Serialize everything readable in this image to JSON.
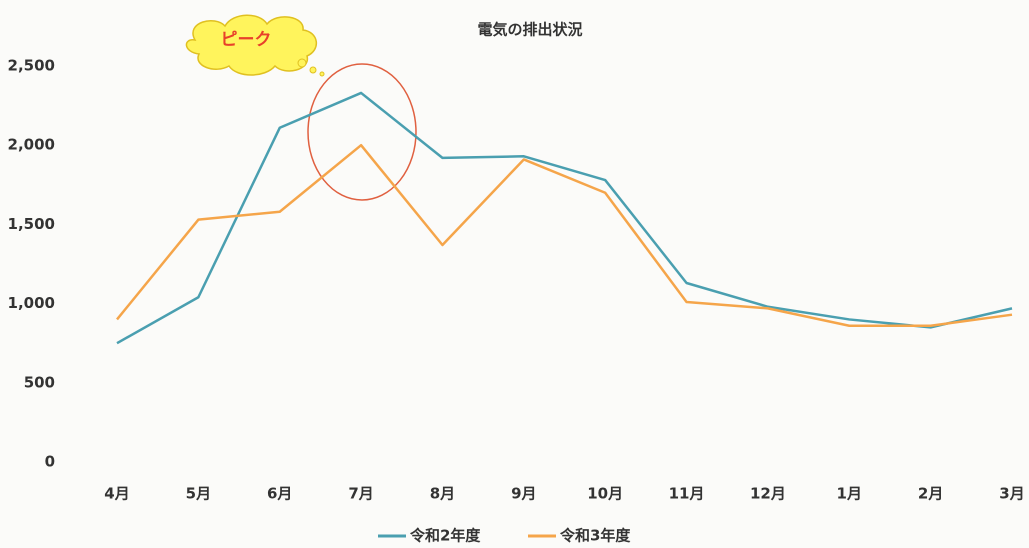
{
  "chart_data": {
    "type": "line",
    "title": "電気の排出状況",
    "annotation": "ピーク",
    "categories": [
      "4月",
      "5月",
      "6月",
      "7月",
      "8月",
      "9月",
      "10月",
      "11月",
      "12月",
      "1月",
      "2月",
      "3月"
    ],
    "series": [
      {
        "name": "令和2年度",
        "color": "#4a9fb0",
        "values": [
          750,
          1040,
          2110,
          2330,
          1920,
          1930,
          1780,
          1130,
          980,
          900,
          850,
          970
        ]
      },
      {
        "name": "令和3年度",
        "color": "#f5a54a",
        "values": [
          900,
          1530,
          1580,
          2000,
          1370,
          1910,
          1700,
          1010,
          970,
          860,
          860,
          930
        ]
      }
    ],
    "ylim": [
      0,
      2500
    ],
    "yticks": [
      0,
      500,
      {
        "value": 1000,
        "label": "1,000"
      },
      {
        "value": 1500,
        "label": "1,500"
      },
      {
        "value": 2000,
        "label": "2,000"
      },
      {
        "value": 2500,
        "label": "2,500"
      }
    ],
    "grid": false,
    "legend": "bottom"
  }
}
